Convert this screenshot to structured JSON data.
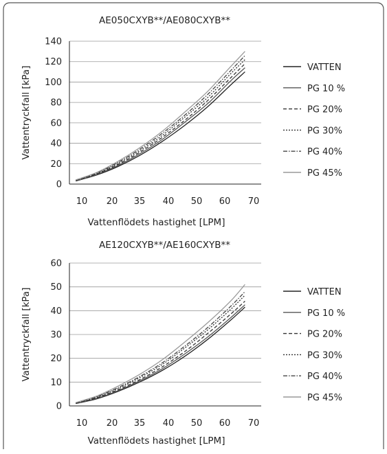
{
  "chart_data": [
    {
      "type": "line",
      "title": "AE050CXYB**/AE080CXYB**",
      "xlabel": "Vattenflödets hastighet [LPM]",
      "ylabel": "Vattentryckfall [kPa]",
      "xticks": [
        "10",
        "20",
        "35",
        "40",
        "50",
        "60",
        "70"
      ],
      "yticks": [
        "0",
        "20",
        "40",
        "60",
        "80",
        "100",
        "120",
        "140"
      ],
      "ylim": [
        0,
        140
      ],
      "grid": "horizontal",
      "legend_position": "right",
      "x": [
        8,
        15,
        22,
        30,
        38,
        46,
        54,
        62,
        67
      ],
      "series": [
        {
          "name": "VATTEN",
          "values": [
            3,
            9,
            17,
            28,
            42,
            58,
            76,
            97,
            110
          ],
          "color": "#222222",
          "dash": "solid"
        },
        {
          "name": "PG 10 %",
          "values": [
            3,
            9.5,
            18,
            29.5,
            44,
            61,
            79,
            101,
            114
          ],
          "color": "#555555",
          "dash": "solid"
        },
        {
          "name": "PG 20%",
          "values": [
            3.5,
            10,
            19,
            31,
            46,
            63,
            82,
            104,
            118
          ],
          "color": "#333333",
          "dash": "dashed"
        },
        {
          "name": "PG 30%",
          "values": [
            3.5,
            10.5,
            20,
            32.5,
            48,
            66,
            85,
            108,
            122
          ],
          "color": "#333333",
          "dotted": true
        },
        {
          "name": "PG 40%",
          "values": [
            4,
            11,
            21,
            34,
            50,
            68,
            88,
            111,
            126
          ],
          "color": "#444444",
          "dash": "dashdot"
        },
        {
          "name": "PG 45%",
          "values": [
            4,
            11.5,
            22,
            35.5,
            52,
            71,
            91,
            115,
            130
          ],
          "color": "#999999",
          "dash": "solid"
        }
      ]
    },
    {
      "type": "line",
      "title": "AE120CXYB**/AE160CXYB**",
      "xlabel": "Vattenflödets hastighet [LPM]",
      "ylabel": "Vattentryckfall [kPa]",
      "xticks": [
        "10",
        "20",
        "35",
        "40",
        "50",
        "60",
        "70"
      ],
      "yticks": [
        "0",
        "10",
        "20",
        "30",
        "40",
        "50",
        "60"
      ],
      "ylim": [
        0,
        60
      ],
      "grid": "horizontal",
      "legend_position": "right",
      "x": [
        8,
        15,
        22,
        30,
        38,
        46,
        54,
        62,
        67
      ],
      "series": [
        {
          "name": "VATTEN",
          "values": [
            1,
            3,
            6,
            10,
            15,
            21,
            28,
            36,
            41.5
          ],
          "color": "#222222",
          "dash": "solid"
        },
        {
          "name": "PG 10 %",
          "values": [
            1,
            3.2,
            6.3,
            10.5,
            15.7,
            22,
            29,
            37,
            42.5
          ],
          "color": "#555555",
          "dash": "solid"
        },
        {
          "name": "PG 20%",
          "values": [
            1.1,
            3.4,
            6.7,
            11,
            16.5,
            23,
            30.5,
            38.5,
            44
          ],
          "color": "#333333",
          "dash": "dashed"
        },
        {
          "name": "PG 30%",
          "values": [
            1.2,
            3.7,
            7.2,
            11.8,
            17.5,
            24.5,
            32,
            40.5,
            46.5
          ],
          "color": "#333333",
          "dash": "dotted"
        },
        {
          "name": "PG 40%",
          "values": [
            1.3,
            3.9,
            7.6,
            12.3,
            18.2,
            25.3,
            33,
            41.8,
            48
          ],
          "color": "#444444",
          "dash": "dashdot"
        },
        {
          "name": "PG 45%",
          "values": [
            1.4,
            4.2,
            8.2,
            13.2,
            19.5,
            27,
            35,
            44,
            51
          ],
          "color": "#999999",
          "dash": "solid"
        }
      ]
    }
  ]
}
